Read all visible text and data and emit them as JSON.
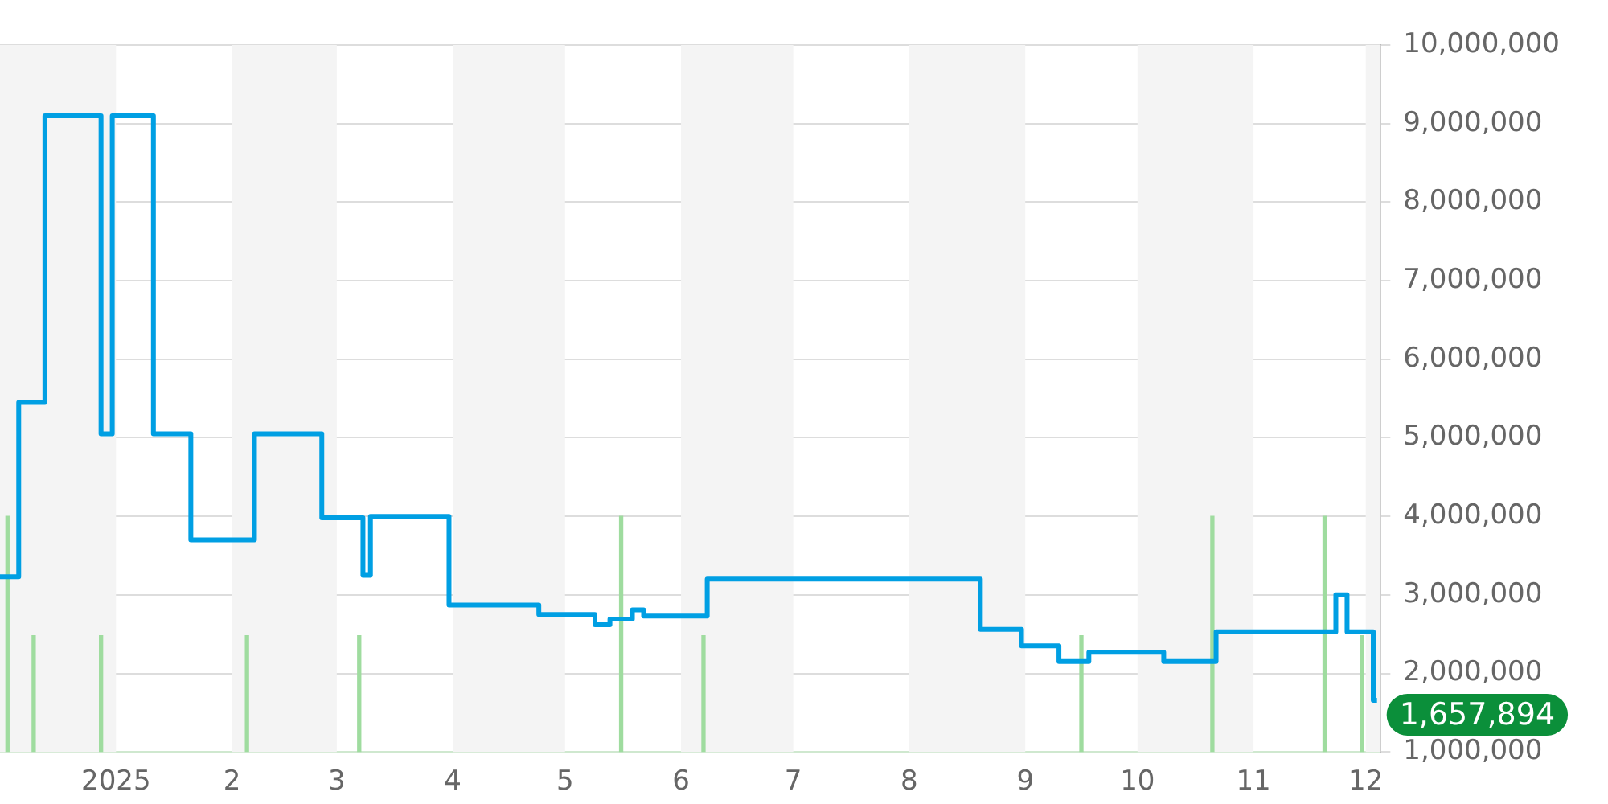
{
  "chart_data": {
    "type": "step",
    "series": [
      {
        "color": "#009fe3",
        "x": [
          "2024-12-01",
          "2024-12-06",
          "2024-12-13",
          "2024-12-28",
          "2024-12-31",
          "2025-01-11",
          "2025-01-21",
          "2025-02-07",
          "2025-02-25",
          "2025-03-08",
          "2025-03-10",
          "2025-03-31",
          "2025-04-24",
          "2025-05-09",
          "2025-05-13",
          "2025-05-19",
          "2025-05-22",
          "2025-06-08",
          "2025-08-20",
          "2025-08-31",
          "2025-09-10",
          "2025-09-18",
          "2025-10-08",
          "2025-10-22",
          "2025-11-23",
          "2025-11-26",
          "2025-12-03",
          "2025-12-04"
        ],
        "values": [
          3230000,
          5450000,
          9100000,
          5050000,
          9100000,
          5050000,
          3700000,
          5050000,
          3980000,
          3250000,
          4000000,
          2870000,
          2750000,
          2620000,
          2690000,
          2810000,
          2730000,
          3200000,
          2560000,
          2350000,
          2150000,
          2270000,
          2150000,
          2530000,
          3000000,
          2530000,
          1657894,
          1657894
        ]
      },
      {
        "type": "bar",
        "color": "#9fdc9f",
        "x": [
          "2024-12-03",
          "2024-12-10",
          "2024-12-28",
          "2025-02-05",
          "2025-03-07",
          "2025-05-16",
          "2025-06-07",
          "2025-09-16",
          "2025-10-21",
          "2025-11-20",
          "2025-11-30"
        ],
        "values": [
          4000000,
          2480000,
          2480000,
          2480000,
          2480000,
          4000000,
          2480000,
          2480000,
          4000000,
          4000000,
          2480000
        ]
      }
    ],
    "xlim": [
      "2024-12-01",
      "2025-12-05"
    ],
    "xticks": [
      {
        "value": "2025-01-01",
        "label": "2025"
      },
      {
        "value": "2025-02-01",
        "label": "2"
      },
      {
        "value": "2025-03-01",
        "label": "3"
      },
      {
        "value": "2025-04-01",
        "label": "4"
      },
      {
        "value": "2025-05-01",
        "label": "5"
      },
      {
        "value": "2025-06-01",
        "label": "6"
      },
      {
        "value": "2025-07-01",
        "label": "7"
      },
      {
        "value": "2025-08-01",
        "label": "8"
      },
      {
        "value": "2025-09-01",
        "label": "9"
      },
      {
        "value": "2025-10-01",
        "label": "10"
      },
      {
        "value": "2025-11-01",
        "label": "11"
      },
      {
        "value": "2025-12-01",
        "label": "12"
      }
    ],
    "ylim": [
      1000000,
      10000000
    ],
    "yticks": [
      {
        "value": 1000000,
        "label": "1,000,000"
      },
      {
        "value": 2000000,
        "label": "2,000,000"
      },
      {
        "value": 3000000,
        "label": "3,000,000"
      },
      {
        "value": 4000000,
        "label": "4,000,000"
      },
      {
        "value": 5000000,
        "label": "5,000,000"
      },
      {
        "value": 6000000,
        "label": "6,000,000"
      },
      {
        "value": 7000000,
        "label": "7,000,000"
      },
      {
        "value": 8000000,
        "label": "8,000,000"
      },
      {
        "value": 9000000,
        "label": "9,000,000"
      },
      {
        "value": 10000000,
        "label": "10,000,000"
      }
    ],
    "grid": "y",
    "bands": [
      {
        "axis": "x",
        "from": "2024-12-01",
        "to": "2025-01-01",
        "color": "#f4f4f4"
      },
      {
        "axis": "x",
        "from": "2025-02-01",
        "to": "2025-03-01",
        "color": "#f4f4f4"
      },
      {
        "axis": "x",
        "from": "2025-04-01",
        "to": "2025-05-01",
        "color": "#f4f4f4"
      },
      {
        "axis": "x",
        "from": "2025-06-01",
        "to": "2025-07-01",
        "color": "#f4f4f4"
      },
      {
        "axis": "x",
        "from": "2025-08-01",
        "to": "2025-09-01",
        "color": "#f4f4f4"
      },
      {
        "axis": "x",
        "from": "2025-10-01",
        "to": "2025-11-01",
        "color": "#f4f4f4"
      },
      {
        "axis": "x",
        "from": "2025-12-01",
        "to": "2025-12-05",
        "color": "#f4f4f4"
      }
    ],
    "annotations": [
      {
        "text": "1,657,894",
        "x": "2025-12-04",
        "y": 1657894
      }
    ],
    "legend": false
  }
}
